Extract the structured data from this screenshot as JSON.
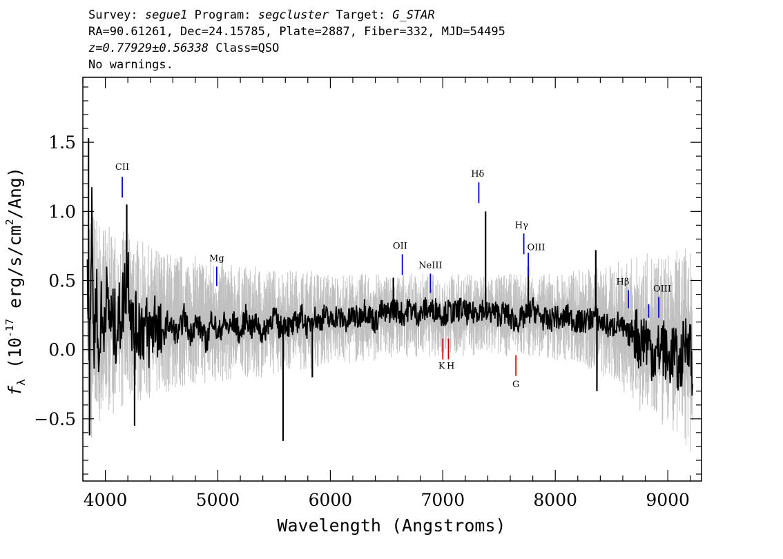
{
  "header": {
    "survey_label": "Survey:",
    "survey": "segue1",
    "program_label": "Program:",
    "program": "segcluster",
    "target_label": "Target:",
    "target": "G_STAR",
    "line2": "RA=90.61261, Dec=24.15785, Plate=2887, Fiber=332, MJD=54495",
    "redshift": "z=0.77929±0.56338",
    "class_text": "Class=QSO",
    "warnings": "No warnings."
  },
  "chart_data": {
    "type": "line",
    "xlabel": "Wavelength (Angstroms)",
    "ylabel_prefix": "f",
    "ylabel_sub": "λ",
    "ylabel_main": " (10",
    "ylabel_exp": "-17",
    "ylabel_unit": " erg/s/cm",
    "ylabel_exp2": "2",
    "ylabel_end": "/Ang)",
    "xlim": [
      3800,
      9300
    ],
    "ylim": [
      -0.95,
      1.97
    ],
    "xticks": [
      4000,
      5000,
      6000,
      7000,
      8000,
      9000
    ],
    "xtick_labels": [
      "4000",
      "5000",
      "6000",
      "7000",
      "8000",
      "9000"
    ],
    "yticks": [
      -0.5,
      0.0,
      0.5,
      1.0,
      1.5
    ],
    "ytick_labels": [
      "−0.5",
      "0.0",
      "0.5",
      "1.0",
      "1.5"
    ],
    "grid": false,
    "series": [
      {
        "role": "smoothed_flux",
        "color": "#000000",
        "x": [
          3840,
          3860,
          3880,
          3900,
          3920,
          3940,
          3960,
          3980,
          4000,
          4050,
          4100,
          4150,
          4200,
          4250,
          4300,
          4350,
          4400,
          4450,
          4500,
          4550,
          4600,
          4650,
          4700,
          4750,
          4800,
          4850,
          4900,
          4950,
          5000,
          5050,
          5100,
          5150,
          5200,
          5250,
          5300,
          5350,
          5400,
          5450,
          5500,
          5550,
          5600,
          5650,
          5700,
          5750,
          5800,
          5850,
          5900,
          5950,
          6000,
          6050,
          6100,
          6150,
          6200,
          6250,
          6300,
          6350,
          6400,
          6450,
          6500,
          6550,
          6600,
          6650,
          6700,
          6750,
          6800,
          6850,
          6900,
          6950,
          7000,
          7050,
          7100,
          7150,
          7200,
          7250,
          7300,
          7350,
          7400,
          7450,
          7500,
          7550,
          7600,
          7650,
          7700,
          7750,
          7800,
          7850,
          7900,
          7950,
          8000,
          8050,
          8100,
          8150,
          8200,
          8250,
          8300,
          8350,
          8400,
          8450,
          8500,
          8550,
          8600,
          8650,
          8700,
          8750,
          8800,
          8850,
          8900,
          8950,
          9000,
          9050,
          9100,
          9150,
          9200,
          9220
        ],
        "y": [
          0.6,
          0.1,
          0.9,
          0.0,
          0.5,
          -0.2,
          0.3,
          0.1,
          0.4,
          0.2,
          0.15,
          0.3,
          0.6,
          0.1,
          0.2,
          0.15,
          0.1,
          0.25,
          0.05,
          0.2,
          0.15,
          0.1,
          0.25,
          0.1,
          0.2,
          0.15,
          0.05,
          0.25,
          0.1,
          0.2,
          0.15,
          0.2,
          0.1,
          0.25,
          0.15,
          0.2,
          0.1,
          0.2,
          0.25,
          0.15,
          0.2,
          0.15,
          0.2,
          0.25,
          0.15,
          0.25,
          0.2,
          0.25,
          0.2,
          0.25,
          0.22,
          0.2,
          0.25,
          0.22,
          0.3,
          0.25,
          0.2,
          0.28,
          0.25,
          0.3,
          0.28,
          0.25,
          0.3,
          0.27,
          0.25,
          0.3,
          0.28,
          0.3,
          0.25,
          0.28,
          0.26,
          0.3,
          0.27,
          0.25,
          0.28,
          0.3,
          0.26,
          0.28,
          0.25,
          0.27,
          0.23,
          0.2,
          0.22,
          0.25,
          0.3,
          0.25,
          0.22,
          0.2,
          0.25,
          0.2,
          0.25,
          0.22,
          0.2,
          0.2,
          0.22,
          0.25,
          0.2,
          0.18,
          0.15,
          0.2,
          0.15,
          0.1,
          0.15,
          0.05,
          0.1,
          0.0,
          -0.05,
          0.05,
          -0.1,
          0.0,
          -0.15,
          0.05,
          0.1,
          -0.3
        ]
      },
      {
        "role": "raw_flux_envelope",
        "color": "#c0c0c0",
        "x": [
          3840,
          3900,
          4000,
          4200,
          4400,
          4600,
          4800,
          5000,
          5200,
          5400,
          5600,
          5800,
          6000,
          6200,
          6400,
          6600,
          6800,
          7000,
          7200,
          7400,
          7600,
          7800,
          8000,
          8200,
          8400,
          8600,
          8800,
          9000,
          9220
        ],
        "y_high": [
          1.1,
          1.0,
          0.9,
          0.85,
          0.75,
          0.7,
          0.68,
          0.65,
          0.6,
          0.6,
          0.58,
          0.58,
          0.55,
          0.55,
          0.55,
          0.55,
          0.55,
          0.55,
          0.55,
          0.55,
          0.55,
          0.55,
          0.55,
          0.58,
          0.6,
          0.65,
          0.7,
          0.7,
          0.75
        ],
        "y_low": [
          -0.8,
          -0.6,
          -0.5,
          -0.4,
          -0.35,
          -0.3,
          -0.25,
          -0.25,
          -0.2,
          -0.2,
          -0.15,
          -0.15,
          -0.1,
          -0.1,
          -0.08,
          -0.05,
          -0.05,
          -0.05,
          -0.05,
          -0.05,
          -0.05,
          -0.05,
          -0.08,
          -0.1,
          -0.2,
          -0.3,
          -0.5,
          -0.6,
          -0.75
        ]
      }
    ],
    "spikes": [
      {
        "x": 3850,
        "y": 1.53
      },
      {
        "x": 3860,
        "y": -0.62
      },
      {
        "x": 4190,
        "y": 1.05
      },
      {
        "x": 4260,
        "y": -0.55
      },
      {
        "x": 5580,
        "y": -0.66
      },
      {
        "x": 5840,
        "y": -0.2
      },
      {
        "x": 6560,
        "y": 0.52
      },
      {
        "x": 7380,
        "y": 1.0
      },
      {
        "x": 7760,
        "y": 0.6
      },
      {
        "x": 8360,
        "y": 0.72
      },
      {
        "x": 8370,
        "y": -0.3
      }
    ],
    "emission_lines": [
      {
        "label": "CII",
        "x": 4150,
        "y0": 1.1,
        "y1": 1.25,
        "lx": 4150,
        "ly": 1.3
      },
      {
        "label": "Mg",
        "x": 4990,
        "y0": 0.46,
        "y1": 0.6,
        "lx": 4990,
        "ly": 0.64
      },
      {
        "label": "OII",
        "x": 6640,
        "y0": 0.54,
        "y1": 0.69,
        "lx": 6620,
        "ly": 0.73
      },
      {
        "label": "NeIII",
        "x": 6890,
        "y0": 0.41,
        "y1": 0.55,
        "lx": 6890,
        "ly": 0.59
      },
      {
        "label": "Hδ",
        "x": 7320,
        "y0": 1.06,
        "y1": 1.21,
        "lx": 7310,
        "ly": 1.25
      },
      {
        "label": "Hγ",
        "x": 7720,
        "y0": 0.69,
        "y1": 0.84,
        "lx": 7700,
        "ly": 0.88
      },
      {
        "label": "OIII",
        "x": 7760,
        "y0": 0.53,
        "y1": 0.7,
        "lx": 7830,
        "ly": 0.72
      },
      {
        "label": "Hβ",
        "x": 8650,
        "y0": 0.3,
        "y1": 0.43,
        "lx": 8600,
        "ly": 0.47
      },
      {
        "label": "OIII",
        "x": 8830,
        "y0": 0.23,
        "y1": 0.33,
        "lx": 8950,
        "ly": 0.42
      },
      {
        "label": "",
        "x": 8920,
        "y0": 0.23,
        "y1": 0.38,
        "lx": 8920,
        "ly": 0.4
      }
    ],
    "absorption_lines": [
      {
        "label": "K",
        "x": 7000,
        "y0": -0.07,
        "y1": 0.08,
        "lx": 6990,
        "ly": -0.14
      },
      {
        "label": "H",
        "x": 7050,
        "y0": -0.07,
        "y1": 0.08,
        "lx": 7070,
        "ly": -0.14
      },
      {
        "label": "G",
        "x": 7650,
        "y0": -0.19,
        "y1": -0.04,
        "lx": 7650,
        "ly": -0.27
      }
    ],
    "emission_color": "#0000cc",
    "absorption_color": "#cc0000"
  }
}
